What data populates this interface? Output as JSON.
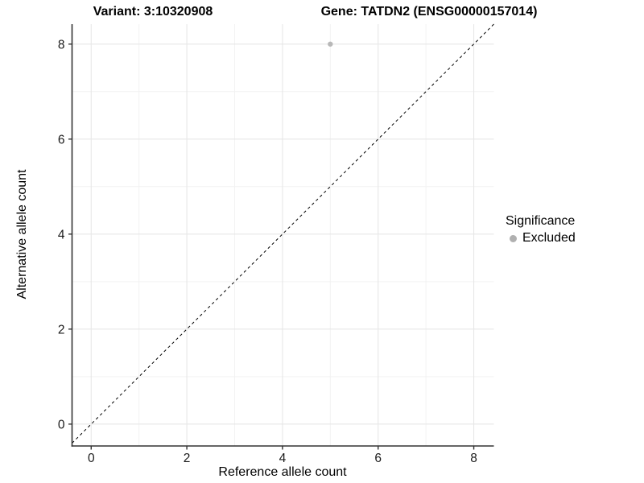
{
  "chart_data": {
    "type": "scatter",
    "title_left": "Variant: 3:10320908",
    "title_right": "Gene: TATDN2 (ENSG00000157014)",
    "xlabel": "Reference allele count",
    "ylabel": "Alternative allele count",
    "xlim": [
      -0.4,
      8.42
    ],
    "ylim": [
      -0.46,
      8.42
    ],
    "xticks": [
      0,
      2,
      4,
      6,
      8
    ],
    "yticks": [
      0,
      2,
      4,
      6,
      8
    ],
    "x_minor_ticks": [
      1,
      3,
      5,
      7
    ],
    "y_minor_ticks": [
      1,
      3,
      5,
      7
    ],
    "grid": "major+minor",
    "points": [
      {
        "x": 5,
        "y": 8,
        "significance": "Excluded"
      }
    ],
    "abline": {
      "slope": 1,
      "intercept": 0,
      "style": "dashed"
    },
    "legend": {
      "title": "Significance",
      "position": "right",
      "entries": [
        {
          "label": "Excluded",
          "color": "#b0b0b0"
        }
      ]
    },
    "colors": {
      "point": "#b8b8b8",
      "grid_major": "#e7e7e7",
      "grid_minor": "#f2f2f2",
      "axis": "#333333",
      "tick": "#333333",
      "text": "#1a1a1a",
      "background": "#ffffff",
      "abline": "#000000"
    }
  }
}
